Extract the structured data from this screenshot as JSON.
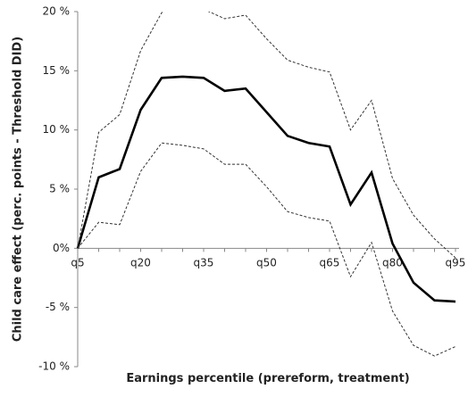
{
  "chart_data": {
    "type": "line",
    "x_label": "Earnings percentile (prereform, treatment)",
    "y_label": "Child care effect (perc. points - Threshold DID)",
    "categories": [
      "q5",
      null,
      null,
      "q20",
      null,
      null,
      "q35",
      null,
      null,
      "q50",
      null,
      null,
      "q65",
      null,
      null,
      "q80",
      null,
      null,
      "q95"
    ],
    "series": [
      {
        "color": "#000000",
        "line_style": "solid",
        "values": [
          0,
          6.0,
          6.7,
          11.7,
          14.4,
          14.5,
          14.4,
          13.3,
          13.5,
          11.5,
          9.5,
          8.9,
          8.6,
          3.7,
          6.4,
          0.4,
          -2.9,
          -4.4,
          -4.5
        ]
      },
      {
        "color": "#333333",
        "line_style": "dashed",
        "values": [
          0,
          9.8,
          11.3,
          16.7,
          19.9,
          21.0,
          20.2,
          19.4,
          19.7,
          17.7,
          15.9,
          15.3,
          14.9,
          10.0,
          12.5,
          5.9,
          2.8,
          0.8,
          -0.8
        ]
      },
      {
        "color": "#333333",
        "line_style": "dashed",
        "values": [
          0,
          2.2,
          2.0,
          6.5,
          8.9,
          8.7,
          8.4,
          7.1,
          7.1,
          5.2,
          3.1,
          2.6,
          2.3,
          -2.4,
          0.5,
          -5.3,
          -8.2,
          -9.1,
          -8.3
        ]
      }
    ],
    "ylim": [
      -10,
      20
    ],
    "yticks": [
      {
        "value": -10,
        "label": "-10 %"
      },
      {
        "value": -5,
        "label": "-5 %"
      },
      {
        "value": 0,
        "label": "0%"
      },
      {
        "value": 5,
        "label": "5 %"
      },
      {
        "value": 10,
        "label": "10 %"
      },
      {
        "value": 15,
        "label": "15 %"
      },
      {
        "value": 20,
        "label": "20 %"
      }
    ]
  }
}
